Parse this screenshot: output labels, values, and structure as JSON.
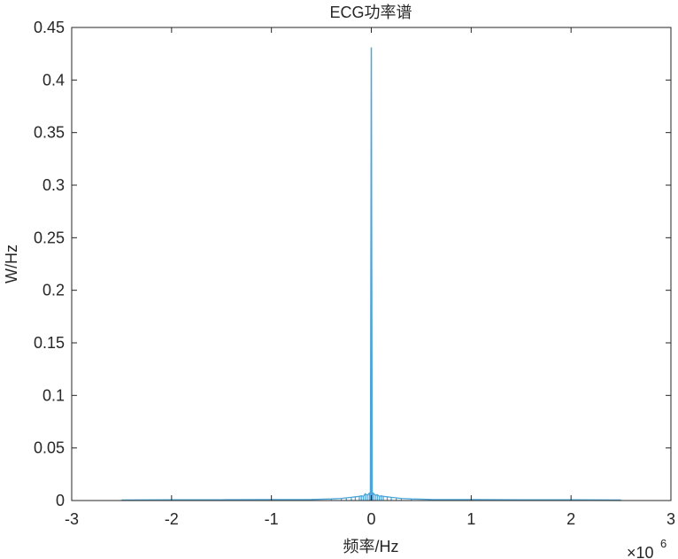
{
  "chart_data": {
    "type": "line",
    "title": "ECG功率谱",
    "xlabel": "频率/Hz",
    "ylabel": "W/Hz",
    "xlim": [
      -3,
      3
    ],
    "ylim": [
      0,
      0.45
    ],
    "x_multiplier": "×10",
    "x_multiplier_exponent": "6",
    "x_ticks": [
      -3,
      -2,
      -1,
      0,
      1,
      2,
      3
    ],
    "x_tick_labels": [
      "-3",
      "-2",
      "-1",
      "0",
      "1",
      "2",
      "3"
    ],
    "y_ticks": [
      0,
      0.05,
      0.1,
      0.15,
      0.2,
      0.25,
      0.3,
      0.35,
      0.4,
      0.45
    ],
    "y_tick_labels": [
      "0",
      "0.05",
      "0.1",
      "0.15",
      "0.2",
      "0.25",
      "0.3",
      "0.35",
      "0.4",
      "0.45"
    ],
    "grid": false,
    "box": true,
    "series_color": "#4DA6D9",
    "axis_color": "#262626",
    "series": [
      {
        "x": [
          -2.5,
          -2.0,
          -1.5,
          -1.0,
          -0.6,
          -0.4,
          -0.3,
          -0.25,
          -0.2,
          -0.16,
          -0.12,
          -0.1,
          -0.08,
          -0.06,
          -0.04,
          -0.02,
          -0.01,
          0.0,
          0.01,
          0.02,
          0.04,
          0.06,
          0.08,
          0.1,
          0.12,
          0.16,
          0.2,
          0.25,
          0.3,
          0.4,
          0.6,
          1.0,
          1.5,
          2.0,
          2.5
        ],
        "y": [
          0.0005,
          0.0007,
          0.0008,
          0.0009,
          0.001,
          0.0015,
          0.002,
          0.0025,
          0.003,
          0.0035,
          0.004,
          0.0045,
          0.004,
          0.0065,
          0.005,
          0.007,
          0.004,
          0.431,
          0.004,
          0.007,
          0.005,
          0.0055,
          0.004,
          0.0045,
          0.004,
          0.0035,
          0.003,
          0.0025,
          0.002,
          0.0015,
          0.001,
          0.0009,
          0.0008,
          0.0007,
          0.0005
        ]
      }
    ]
  }
}
